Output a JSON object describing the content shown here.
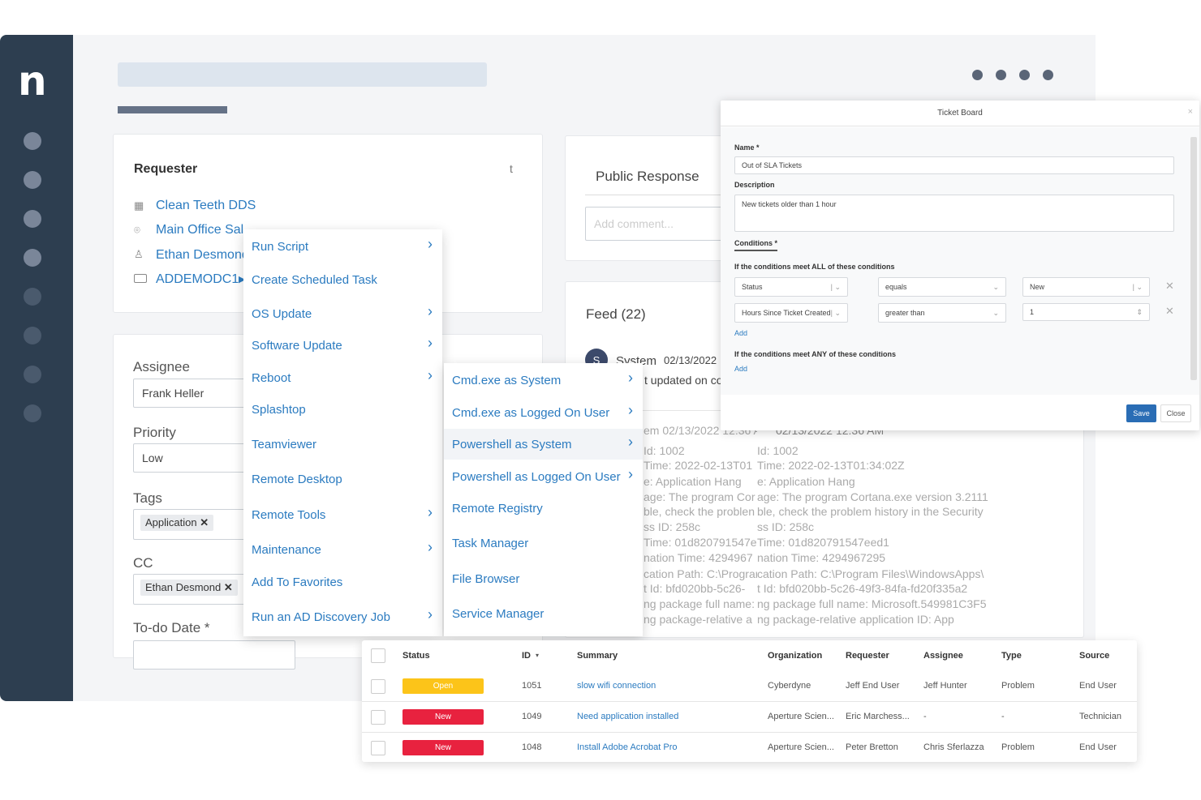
{
  "app": {
    "logo": "n"
  },
  "requester": {
    "title": "Requester",
    "org": "Clean Teeth DDS",
    "location": "Main Office Sal--",
    "contact": "Ethan Desmond",
    "device": "ADDEMODC1",
    "corner": "t"
  },
  "details": {
    "assignee_label": "Assignee",
    "assignee": "Frank Heller",
    "priority_label": "Priority",
    "priority": "Low",
    "tags_label": "Tags",
    "tag": "Application",
    "cc_label": "CC",
    "cc": "Ethan Desmond",
    "todo_label": "To-do Date *"
  },
  "public_response": {
    "title": "Public Response",
    "placeholder": "Add comment..."
  },
  "feed": {
    "title": "Feed (22)",
    "avatar": "S",
    "author": "System",
    "date": "02/13/2022",
    "update_text": "t updated on co",
    "lines": [
      {
        "a": "em  02/13/2022 12:36 AIm",
        "b": "02/13/2022 12:36 AM"
      },
      {
        "a": "Id: 1002",
        "b": "Id: 1002"
      },
      {
        "a": "Time: 2022-02-13T01",
        "b": "Time: 2022-02-13T01:34:02Z"
      },
      {
        "a": "e: Application Hang",
        "b": "e: Application Hang"
      },
      {
        "a": "age: The program Cor",
        "b": "age: The program Cortana.exe version 3.2111"
      },
      {
        "a": "ble, check the problen",
        "b": "ble, check the problem history in the Security"
      },
      {
        "a": "ss ID: 258c",
        "b": "ss ID: 258c"
      },
      {
        "a": "Time: 01d820791547e",
        "b": "Time: 01d820791547eed1"
      },
      {
        "a": "nation Time: 4294967",
        "b": "nation Time: 4294967295"
      },
      {
        "a": "cation Path: C:\\Prograr",
        "b": "cation Path: C:\\Program Files\\WindowsApps\\"
      },
      {
        "a": "t Id: bfd020bb-5c26-",
        "b": "t Id: bfd020bb-5c26-49f3-84fa-fd20f335a2"
      },
      {
        "a": "ng package full name:",
        "b": "ng package full name: Microsoft.549981C3F5"
      },
      {
        "a": "ng package-relative a",
        "b": "ng package-relative application ID: App"
      }
    ]
  },
  "menu": [
    {
      "label": "Run Script",
      "sub": true
    },
    {
      "label": "Create Scheduled Task",
      "sub": false
    },
    {
      "label": "OS Update",
      "sub": true
    },
    {
      "label": "Software Update",
      "sub": true
    },
    {
      "label": "Reboot",
      "sub": true
    },
    {
      "label": "Splashtop",
      "sub": false
    },
    {
      "label": "Teamviewer",
      "sub": false
    },
    {
      "label": "Remote Desktop",
      "sub": false
    },
    {
      "label": "Remote Tools",
      "sub": true
    },
    {
      "label": "Maintenance",
      "sub": true
    },
    {
      "label": "Add To Favorites",
      "sub": false
    },
    {
      "label": "Run an AD Discovery Job",
      "sub": true
    }
  ],
  "submenu": [
    {
      "label": "Cmd.exe as System",
      "sub": true
    },
    {
      "label": "Cmd.exe as Logged On User",
      "sub": true
    },
    {
      "label": "Powershell as System",
      "sub": true,
      "active": true
    },
    {
      "label": "Powershell as Logged On User",
      "sub": true
    },
    {
      "label": "Remote Registry",
      "sub": false
    },
    {
      "label": "Task Manager",
      "sub": false
    },
    {
      "label": "File Browser",
      "sub": false
    },
    {
      "label": "Service Manager",
      "sub": false
    }
  ],
  "modal": {
    "title": "Ticket Board",
    "close_x": "×",
    "name_label": "Name *",
    "name": "Out of SLA Tickets",
    "desc_label": "Description",
    "desc": "New tickets older than 1 hour",
    "conditions_tab": "Conditions *",
    "all_label": "If the conditions meet ALL of these conditions",
    "any_label": "If the conditions meet ANY of these conditions",
    "add": "Add",
    "rows": [
      {
        "field": "Status",
        "op": "equals",
        "value": "New"
      },
      {
        "field": "Hours Since Ticket Created",
        "op": "greater than",
        "value": "1"
      }
    ],
    "save": "Save",
    "close": "Close"
  },
  "table": {
    "headers": [
      "Status",
      "ID",
      "Summary",
      "Organization",
      "Requester",
      "Assignee",
      "Type",
      "Source"
    ],
    "sort_indicator": "▾",
    "rows": [
      {
        "status": "Open",
        "color": "#fcc419",
        "id": "1051",
        "summary": "slow wifi connection",
        "org": "Cyberdyne",
        "requester": "Jeff End User",
        "assignee": "Jeff Hunter",
        "type": "Problem",
        "source": "End User"
      },
      {
        "status": "New",
        "color": "#e8223f",
        "id": "1049",
        "summary": "Need application installed",
        "org": "Aperture Scien...",
        "requester": "Eric Marchess...",
        "assignee": "-",
        "type": "-",
        "source": "Technician"
      },
      {
        "status": "New",
        "color": "#e8223f",
        "id": "1048",
        "summary": "Install Adobe Acrobat Pro",
        "org": "Aperture Scien...",
        "requester": "Peter Bretton",
        "assignee": "Chris Sferlazza",
        "type": "Problem",
        "source": "End User"
      }
    ]
  }
}
